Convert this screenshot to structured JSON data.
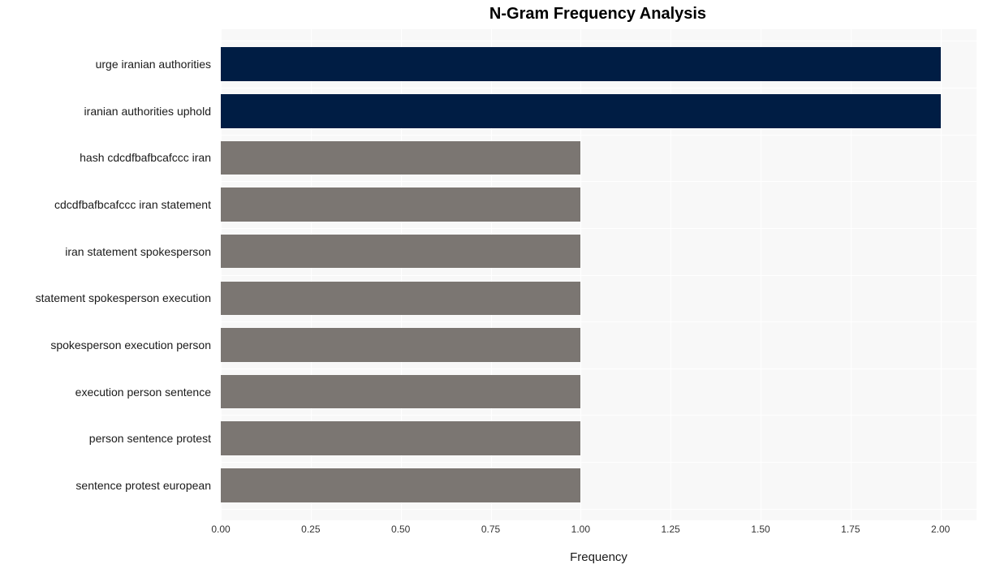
{
  "chart": {
    "type": "bar-horizontal",
    "title": "N-Gram Frequency Analysis",
    "title_fontsize": 20,
    "title_weight": "bold",
    "title_color": "#000000",
    "xlabel": "Frequency",
    "xlabel_fontsize": 15,
    "xlabel_color": "#1a1a1a",
    "ylabel_fontsize": 14,
    "ylabel_color": "#1a1a1a",
    "xtick_fontsize": 12,
    "xtick_color": "#333333",
    "background_color": "#ffffff",
    "plot_bg_color": "#f8f8f8",
    "grid_color": "#ffffff",
    "xlim": [
      0,
      2.1
    ],
    "xticks": [
      0.0,
      0.25,
      0.5,
      0.75,
      1.0,
      1.25,
      1.5,
      1.75,
      2.0
    ],
    "bar_height_ratio": 0.72,
    "categories": [
      "urge iranian authorities",
      "iranian authorities uphold",
      "hash cdcdfbafbcafccc iran",
      "cdcdfbafbcafccc iran statement",
      "iran statement spokesperson",
      "statement spokesperson execution",
      "spokesperson execution person",
      "execution person sentence",
      "person sentence protest",
      "sentence protest european"
    ],
    "values": [
      2,
      2,
      1,
      1,
      1,
      1,
      1,
      1,
      1,
      1
    ],
    "bar_colors": [
      "#001d44",
      "#001d44",
      "#7b7672",
      "#7b7672",
      "#7b7672",
      "#7b7672",
      "#7b7672",
      "#7b7672",
      "#7b7672",
      "#7b7672"
    ]
  }
}
